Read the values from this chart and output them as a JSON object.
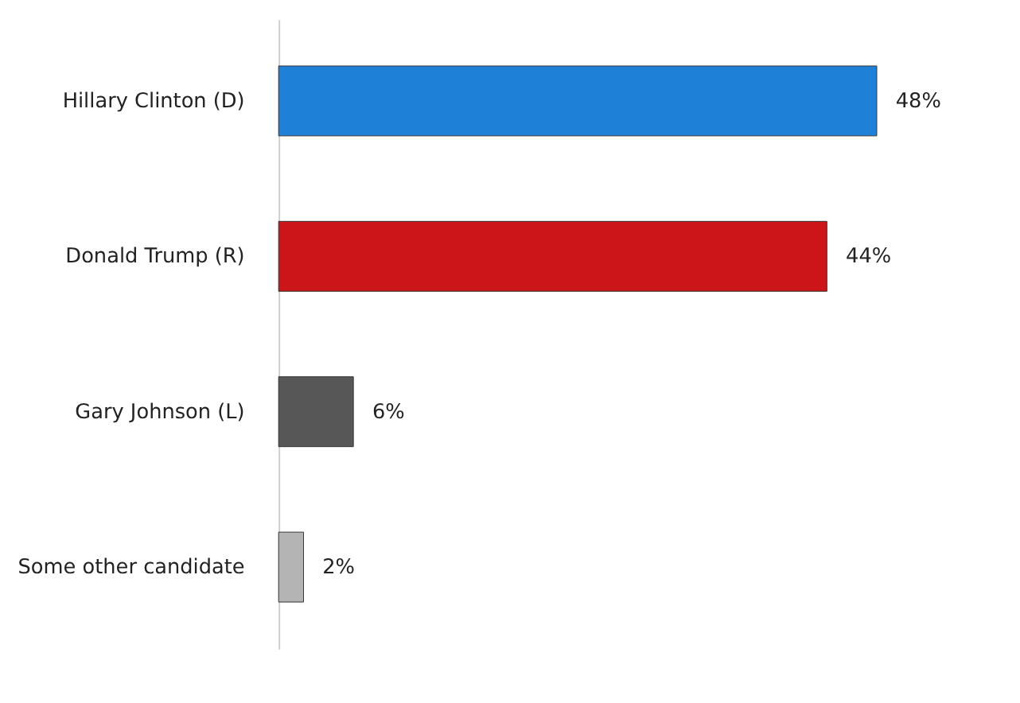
{
  "chart_data": {
    "type": "bar",
    "orientation": "horizontal",
    "categories": [
      "Hillary Clinton (D)",
      "Donald Trump (R)",
      "Gary Johnson (L)",
      "Some other candidate"
    ],
    "values": [
      48,
      44,
      6,
      2
    ],
    "colors": [
      "#1f80d8",
      "#cc1518",
      "#575757",
      "#b4b4b4"
    ],
    "value_labels": [
      "48%",
      "44%",
      "6%",
      "2%"
    ],
    "grid": false
  }
}
